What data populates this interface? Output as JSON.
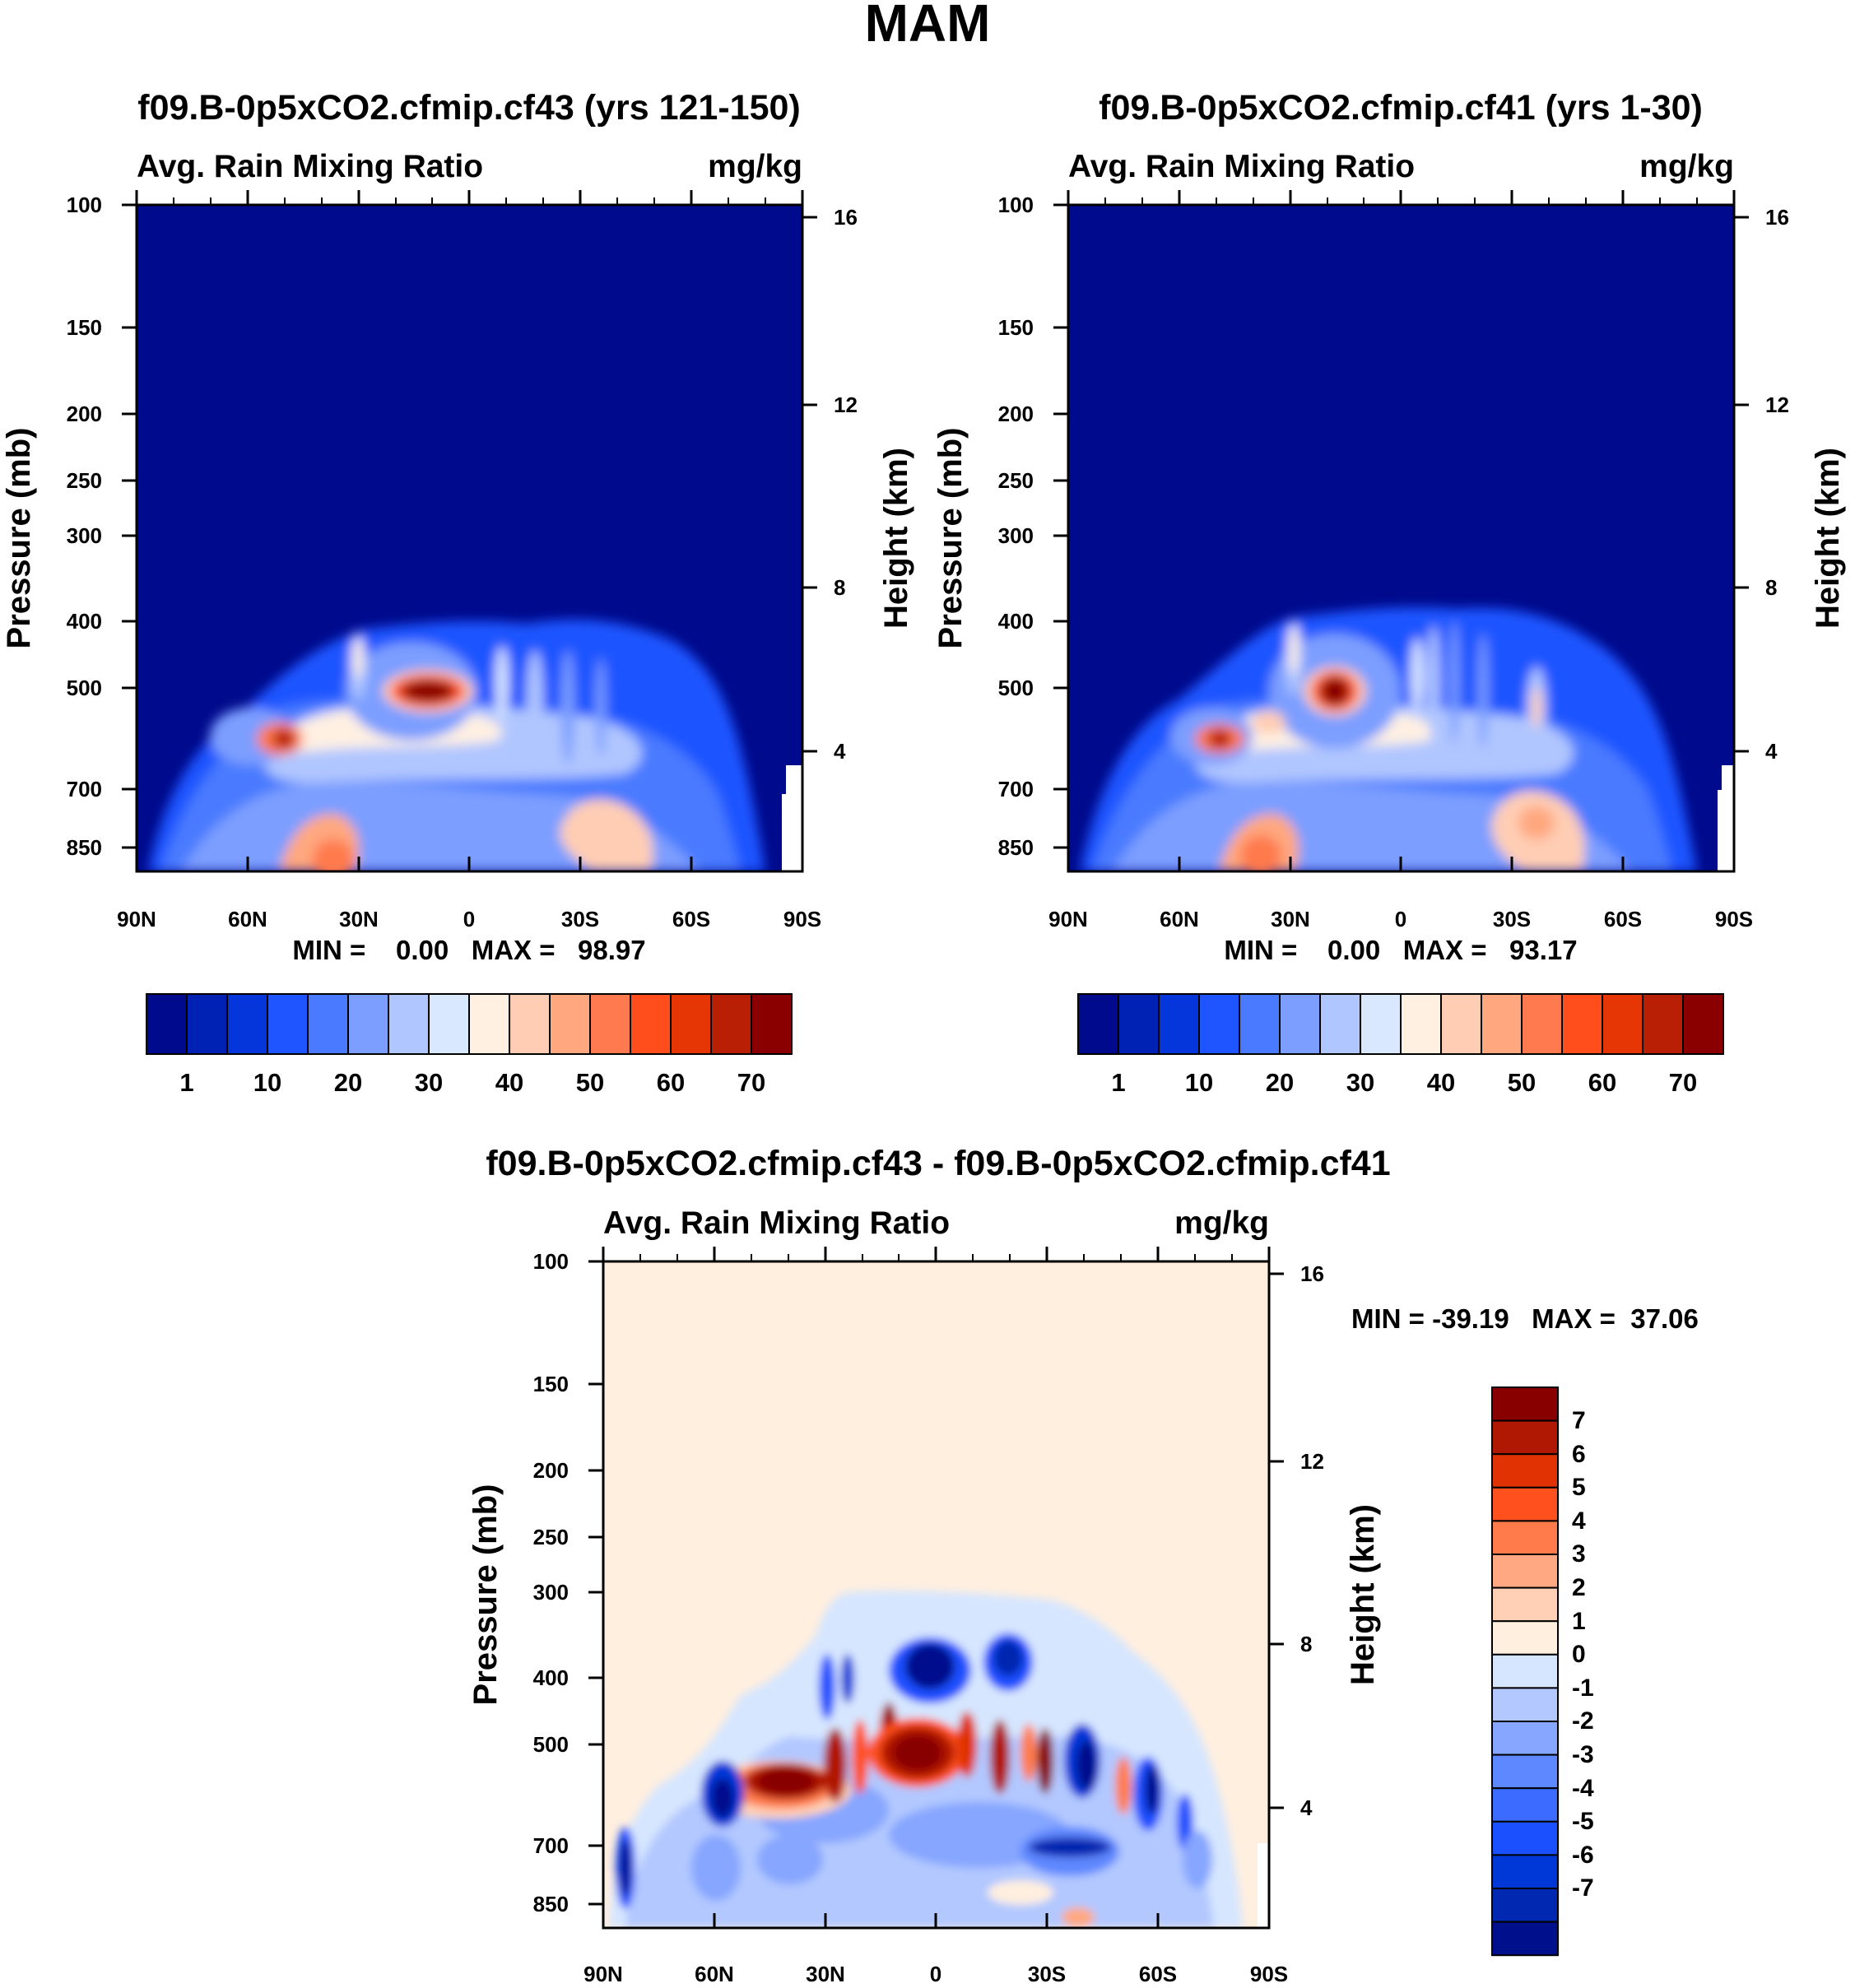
{
  "figure_title": "MAM",
  "colors": {
    "base_scale": [
      "#000a8c",
      "#0022b4",
      "#0436dc",
      "#1e55ff",
      "#4a7aff",
      "#7c9eff",
      "#b0c6ff",
      "#d9e7ff",
      "#fff0e2",
      "#ffcdb4",
      "#ffa77f",
      "#ff7a4e",
      "#ff4d1c",
      "#e63606",
      "#b81f05",
      "#8a0000"
    ],
    "diff_scale": [
      "#00108c",
      "#0028b0",
      "#0038d8",
      "#1a50ff",
      "#3c6cff",
      "#5e88ff",
      "#86a6ff",
      "#b2c8ff",
      "#d6e6ff",
      "#ffefdf",
      "#ffd0b6",
      "#ffa882",
      "#ff7b4c",
      "#ff501e",
      "#e03202",
      "#b01804",
      "#880000"
    ]
  },
  "chart_data": [
    {
      "type": "heatmap",
      "title": "f09.B-0p5xCO2.cfmip.cf43 (yrs 121-150)",
      "left_label": "Avg. Rain Mixing Ratio",
      "right_label": "mg/kg",
      "xlabel": "",
      "ylabel": "Pressure (mb)",
      "ylabel_right": "Height (km)",
      "x_ticks": [
        "90N",
        "60N",
        "30N",
        "0",
        "30S",
        "60S",
        "90S"
      ],
      "y_ticks": [
        "100",
        "150",
        "200",
        "250",
        "300",
        "400",
        "500",
        "700",
        "850"
      ],
      "y_ticks_right": [
        "16",
        "12",
        "8",
        "4"
      ],
      "min_max_text": "MIN =    0.00   MAX =   98.97",
      "colorbar_labels": [
        "1",
        "10",
        "20",
        "30",
        "40",
        "50",
        "60",
        "70"
      ],
      "data_range": [
        0,
        98.97
      ]
    },
    {
      "type": "heatmap",
      "title": "f09.B-0p5xCO2.cfmip.cf41 (yrs 1-30)",
      "left_label": "Avg. Rain Mixing Ratio",
      "right_label": "mg/kg",
      "xlabel": "",
      "ylabel": "Pressure (mb)",
      "ylabel_right": "Height (km)",
      "x_ticks": [
        "90N",
        "60N",
        "30N",
        "0",
        "30S",
        "60S",
        "90S"
      ],
      "y_ticks": [
        "100",
        "150",
        "200",
        "250",
        "300",
        "400",
        "500",
        "700",
        "850"
      ],
      "y_ticks_right": [
        "16",
        "12",
        "8",
        "4"
      ],
      "min_max_text": "MIN =    0.00   MAX =   93.17",
      "colorbar_labels": [
        "1",
        "10",
        "20",
        "30",
        "40",
        "50",
        "60",
        "70"
      ],
      "data_range": [
        0,
        93.17
      ]
    },
    {
      "type": "heatmap",
      "title": "f09.B-0p5xCO2.cfmip.cf43 - f09.B-0p5xCO2.cfmip.cf41",
      "left_label": "Avg. Rain Mixing Ratio",
      "right_label": "mg/kg",
      "xlabel": "",
      "ylabel": "Pressure (mb)",
      "ylabel_right": "Height (km)",
      "x_ticks": [
        "90N",
        "60N",
        "30N",
        "0",
        "30S",
        "60S",
        "90S"
      ],
      "y_ticks": [
        "100",
        "150",
        "200",
        "250",
        "300",
        "400",
        "500",
        "700",
        "850"
      ],
      "y_ticks_right": [
        "16",
        "12",
        "8",
        "4"
      ],
      "min_max_text": "MIN = -39.19   MAX =  37.06",
      "colorbar_labels": [
        "7",
        "6",
        "5",
        "4",
        "3",
        "2",
        "1",
        "0",
        "-1",
        "-2",
        "-3",
        "-4",
        "-5",
        "-6",
        "-7"
      ],
      "data_range": [
        -39.19,
        37.06
      ]
    }
  ]
}
